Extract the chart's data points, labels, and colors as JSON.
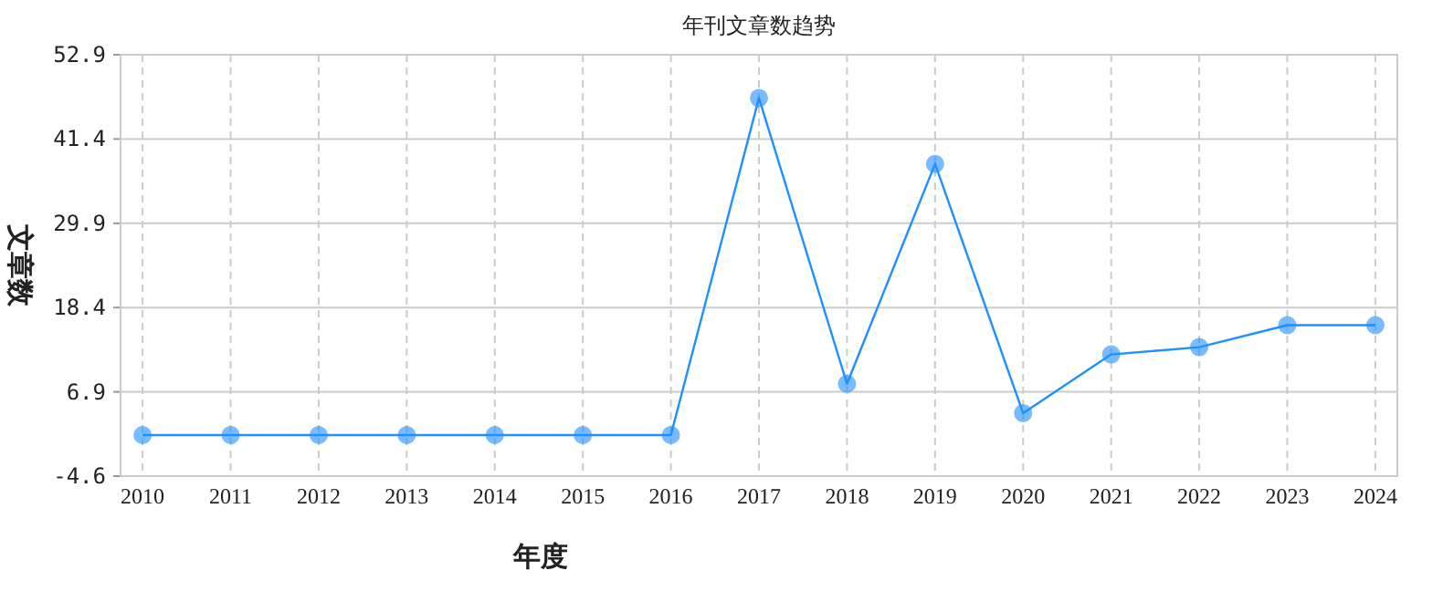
{
  "chart_data": {
    "type": "line",
    "title": "年刊文章数趋势",
    "xlabel": "年度",
    "ylabel": "文章数",
    "categories": [
      "2010",
      "2011",
      "2012",
      "2013",
      "2014",
      "2015",
      "2016",
      "2017",
      "2018",
      "2019",
      "2020",
      "2021",
      "2022",
      "2023",
      "2024"
    ],
    "series": [
      {
        "color": "#1e90ff",
        "values": [
          1,
          1,
          1,
          1,
          1,
          1,
          1,
          47,
          8,
          38,
          4,
          12,
          13,
          16,
          16
        ]
      }
    ],
    "ylim": [
      -4.6,
      52.9
    ],
    "yticks": [
      -4.6,
      6.9,
      18.4,
      29.9,
      41.4,
      52.9
    ],
    "grid": true,
    "marker": "circle",
    "line_style": "solid"
  }
}
